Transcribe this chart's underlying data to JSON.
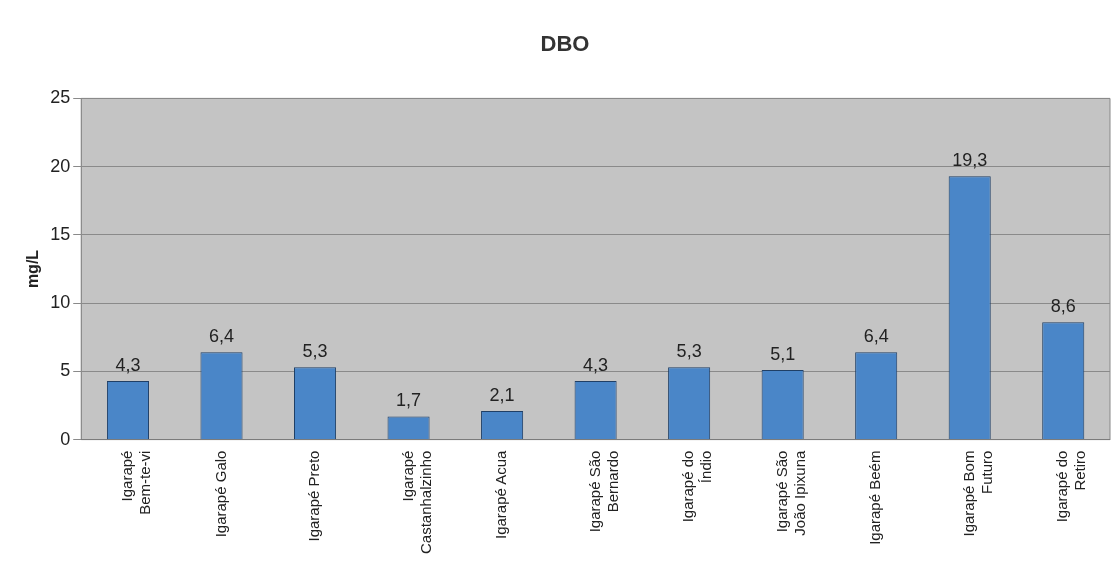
{
  "chart_data": {
    "type": "bar",
    "title": "DBO",
    "ylabel": "mg/L",
    "categories": [
      "Igarapé Bem-te-vi",
      "Igarapé Galo",
      "Igarapé Preto",
      "Igarapé Castanhalzinho",
      "Igarapé Acua",
      "Igarapé São Bernardo",
      "Igarapé do Índio",
      "Igarapé São João Ipixuna",
      "Igarapé Beém",
      "Igarapé Bom Futuro",
      "Igarapé do Retiro"
    ],
    "values": [
      4.3,
      6.4,
      5.3,
      1.7,
      2.1,
      4.3,
      5.3,
      5.1,
      6.4,
      19.3,
      8.6
    ],
    "value_labels": [
      "4,3",
      "6,4",
      "5,3",
      "1,7",
      "2,1",
      "4,3",
      "5,3",
      "5,1",
      "6,4",
      "19,3",
      "8,6"
    ],
    "color": "#4a86c8",
    "ylim": [
      0,
      25
    ],
    "yticks": [
      0,
      5,
      10,
      15,
      20,
      25
    ],
    "grid": "y",
    "legend": false
  }
}
